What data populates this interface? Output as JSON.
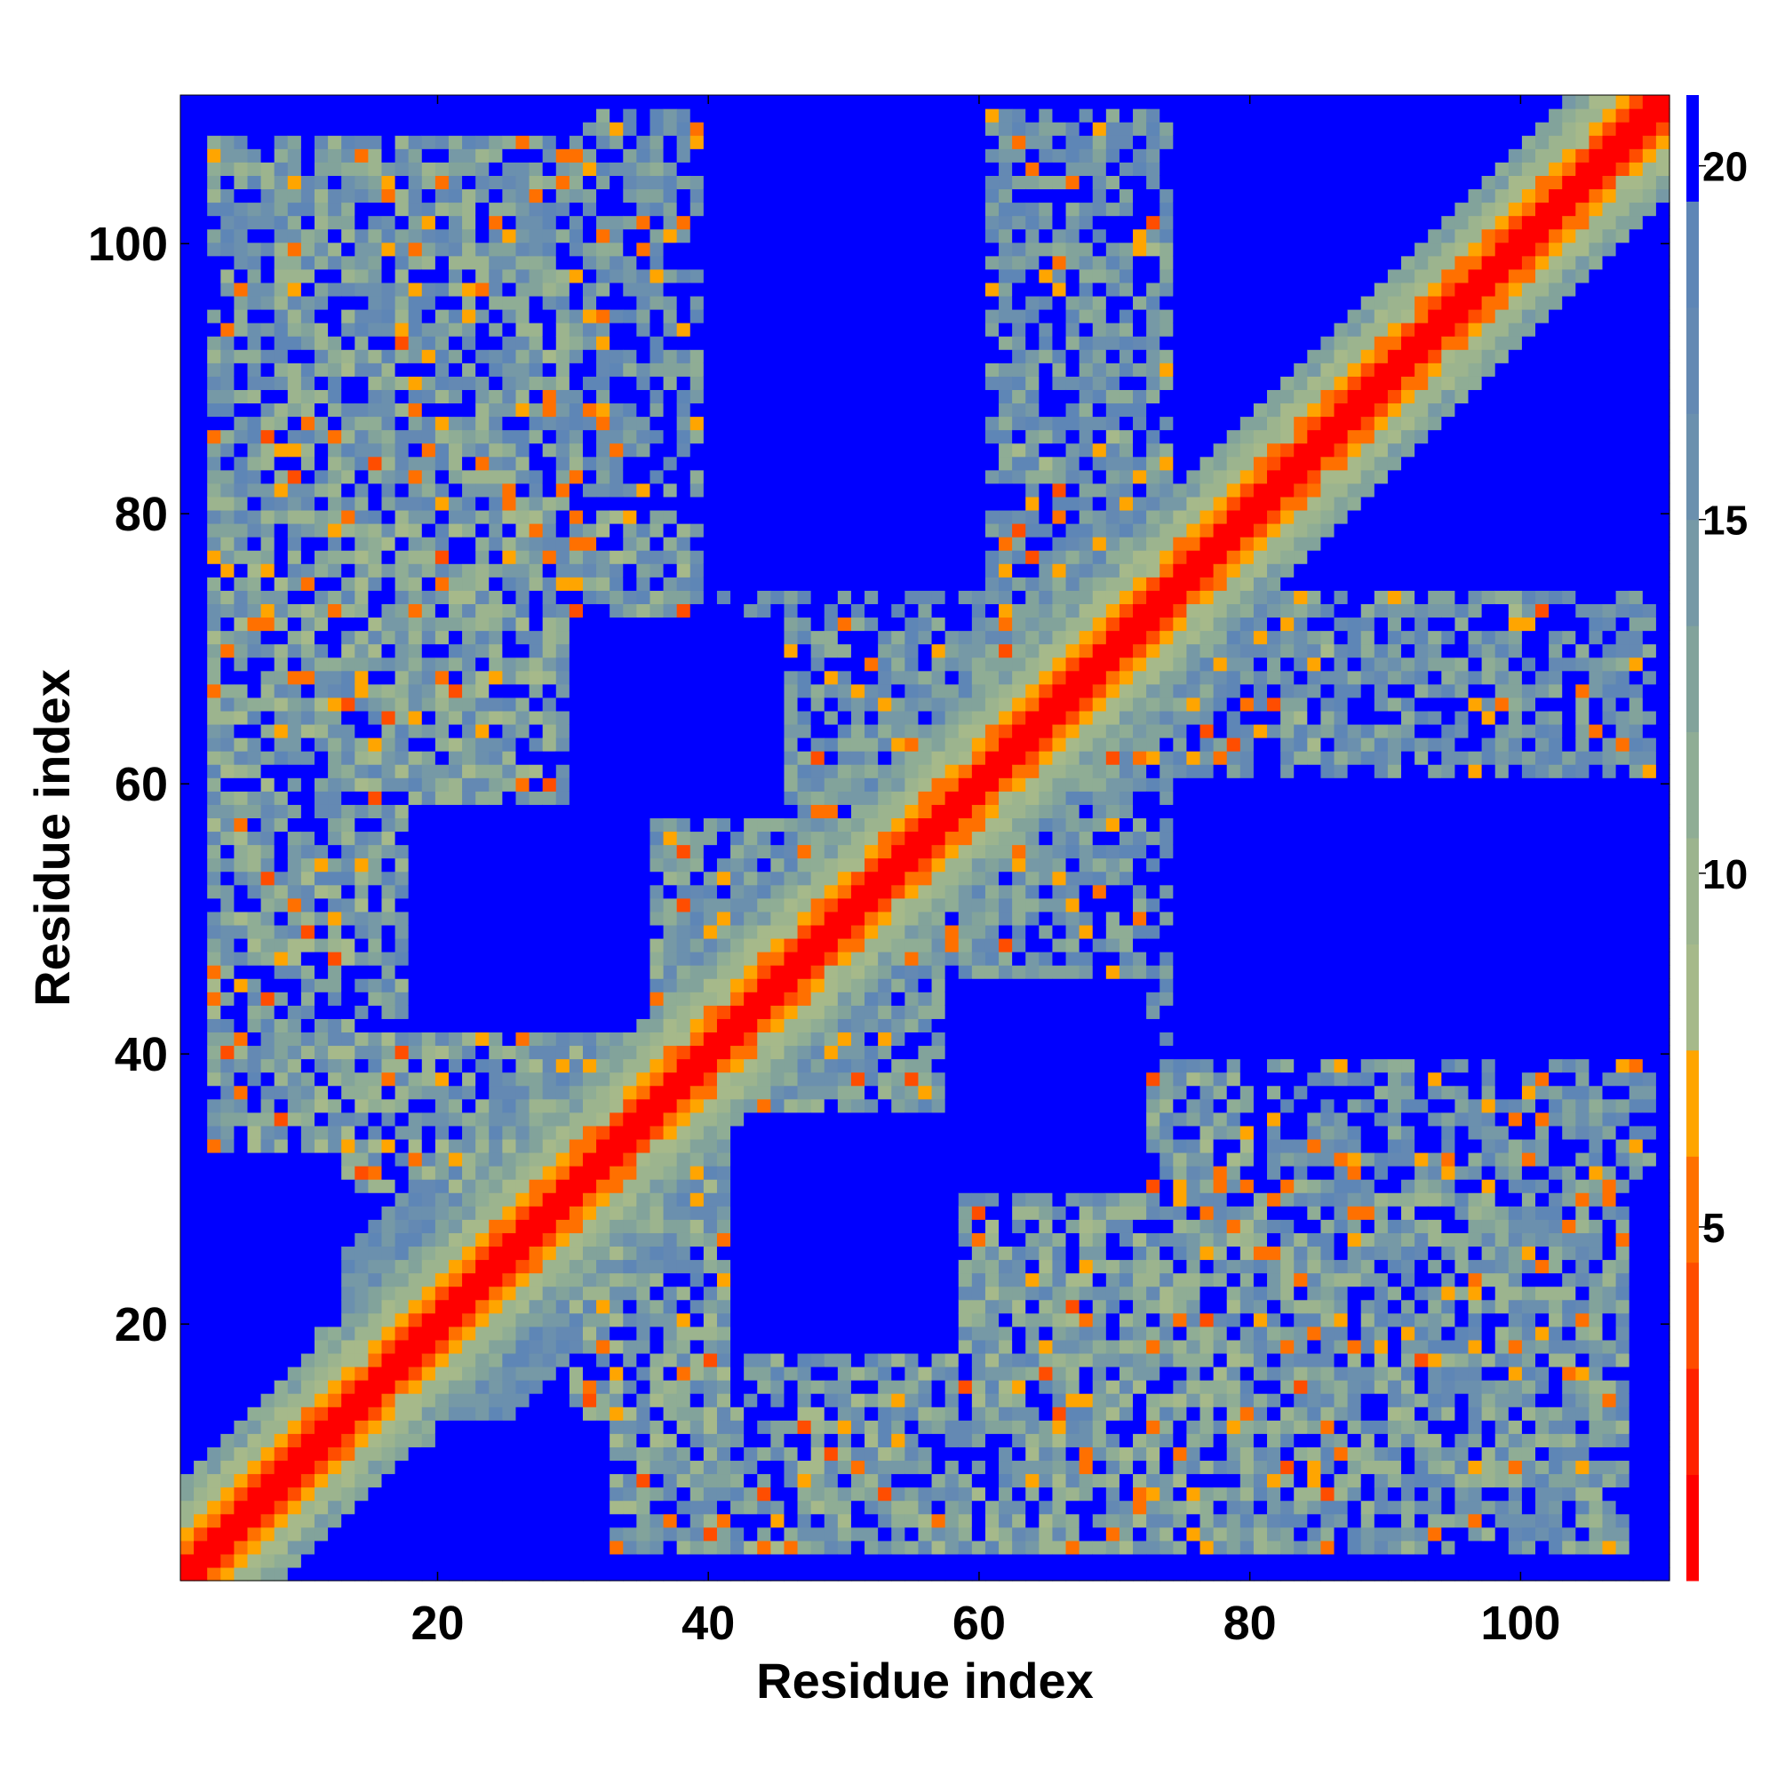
{
  "chart_data": {
    "type": "heatmap",
    "title": "",
    "xlabel": "Residue index",
    "ylabel": "Residue index",
    "xlim": [
      1,
      111
    ],
    "ylim": [
      1,
      111
    ],
    "xticks": [
      20,
      40,
      60,
      80,
      100
    ],
    "yticks": [
      20,
      40,
      60,
      80,
      100
    ],
    "value_meaning": "pairwise residue distance (contact map), symmetric, diagonal = 0",
    "colorbar": {
      "range": [
        0,
        21
      ],
      "ticks": [
        5,
        10,
        15,
        20
      ],
      "saturated_color": "#0000ff",
      "bands": [
        {
          "max": 1.5,
          "color": "#ff0000"
        },
        {
          "max": 3.0,
          "color": "#ff2200"
        },
        {
          "max": 4.5,
          "color": "#ff4d00"
        },
        {
          "max": 6.0,
          "color": "#ff7000"
        },
        {
          "max": 7.5,
          "color": "#ffa500"
        },
        {
          "max": 9.0,
          "color": "#a6b98a"
        },
        {
          "max": 10.5,
          "color": "#9cb48e"
        },
        {
          "max": 12.0,
          "color": "#8fad95"
        },
        {
          "max": 13.5,
          "color": "#82a39b"
        },
        {
          "max": 15.0,
          "color": "#7699a6"
        },
        {
          "max": 16.5,
          "color": "#6b90ae"
        },
        {
          "max": 18.0,
          "color": "#6489b3"
        },
        {
          "max": 19.5,
          "color": "#5e86b6"
        },
        {
          "max": 21.0,
          "color": "#0000ff"
        }
      ]
    },
    "structure": {
      "n_residues": 111,
      "diagonal_band_width": 6,
      "contact_regions": [
        {
          "x": [
            8,
            30
          ],
          "y": [
            88,
            108
          ],
          "mean": 14
        },
        {
          "x": [
            3,
            38
          ],
          "y": [
            30,
            80
          ],
          "mean": 13.5
        },
        {
          "x": [
            35,
            70
          ],
          "y": [
            3,
            25
          ],
          "mean": 14
        },
        {
          "x": [
            55,
            108
          ],
          "y": [
            3,
            30
          ],
          "mean": 14
        },
        {
          "x": [
            42,
            72
          ],
          "y": [
            30,
            62
          ],
          "mean": 15.5
        },
        {
          "x": [
            70,
            110
          ],
          "y": [
            60,
            105
          ],
          "mean": 15.5
        },
        {
          "x": [
            82,
            110
          ],
          "y": [
            30,
            60
          ],
          "mean": 16.5
        },
        {
          "x": [
            38,
            70
          ],
          "y": [
            62,
            108
          ],
          "mean": 17
        }
      ],
      "empty_regions": [
        {
          "x": [
            1,
            10
          ],
          "y": [
            1,
            30
          ]
        },
        {
          "x": [
            18,
            35
          ],
          "y": [
            42,
            58
          ]
        },
        {
          "x": [
            40,
            60
          ],
          "y": [
            75,
            110
          ]
        },
        {
          "x": [
            88,
            108
          ],
          "y": [
            42,
            60
          ]
        },
        {
          "x": [
            75,
            108
          ],
          "y": [
            78,
            111
          ]
        },
        {
          "x": [
            58,
            72
          ],
          "y": [
            30,
            45
          ]
        },
        {
          "x": [
            20,
            32
          ],
          "y": [
            1,
            12
          ]
        }
      ]
    }
  }
}
